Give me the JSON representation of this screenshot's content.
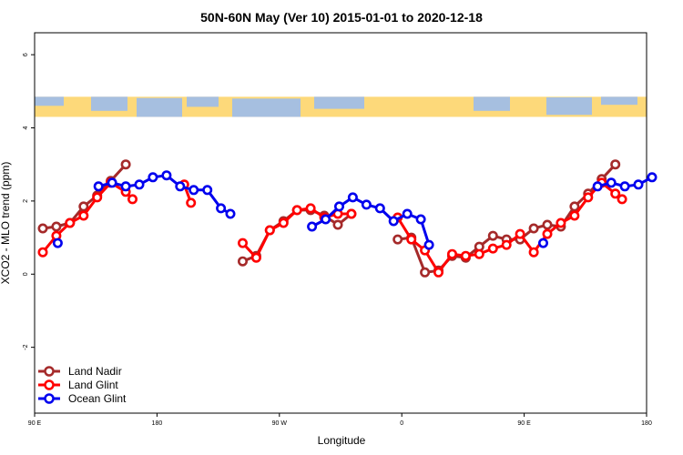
{
  "chart_data": {
    "type": "line",
    "title": "50N-60N May (Ver 10)   2015-01-01 to 2020-12-18",
    "xlabel": "Longitude",
    "ylabel": "XCO2 - MLO trend (ppm)",
    "x_ticks": [
      {
        "value": 90,
        "label": "90 E"
      },
      {
        "value": 180,
        "label": "180"
      },
      {
        "value": 270,
        "label": "90 W"
      },
      {
        "value": 360,
        "label": "0"
      },
      {
        "value": 450,
        "label": "90 E"
      },
      {
        "value": 540,
        "label": "180"
      }
    ],
    "y_ticks": [
      -2,
      0,
      2,
      4,
      6
    ],
    "xlim": [
      90,
      540
    ],
    "ylim": [
      -3.8,
      6.6
    ],
    "map_strip": {
      "ymin": 4.3,
      "ymax": 4.85,
      "ocean_color": "#a6bfe0",
      "land_color": "#fdd97a"
    },
    "legend_position": "bottom-left",
    "series": [
      {
        "name": "Land Nadir",
        "color": "#a52a2a",
        "x": [
          96,
          106,
          116,
          126,
          136,
          146,
          157,
          243,
          253,
          263,
          273,
          283,
          293,
          303,
          313,
          323,
          333,
          357,
          367,
          377,
          387,
          397,
          407,
          417,
          427,
          437,
          447,
          457,
          467,
          477,
          487,
          497,
          507,
          517,
          527
        ],
        "y": [
          1.25,
          1.3,
          1.4,
          1.85,
          2.15,
          2.55,
          3.0,
          0.35,
          0.5,
          1.2,
          1.45,
          1.75,
          1.75,
          1.6,
          1.35,
          1.65,
          null,
          0.95,
          1.0,
          0.05,
          0.1,
          0.5,
          0.45,
          0.75,
          1.05,
          0.95,
          0.95,
          1.25,
          1.35,
          1.3,
          1.85,
          2.2,
          2.6,
          3.0,
          null
        ]
      },
      {
        "name": "Land Glint",
        "color": "#ff0000",
        "x": [
          96,
          106,
          116,
          126,
          136,
          146,
          157,
          162,
          200,
          205,
          243,
          253,
          263,
          273,
          283,
          293,
          303,
          313,
          323,
          357,
          367,
          377,
          387,
          397,
          407,
          417,
          427,
          437,
          447,
          457,
          467,
          477,
          487,
          497,
          507,
          517,
          522
        ],
        "y": [
          0.6,
          1.05,
          1.4,
          1.6,
          2.1,
          2.5,
          2.25,
          2.05,
          2.45,
          1.95,
          0.85,
          0.45,
          1.2,
          1.4,
          1.75,
          1.8,
          1.55,
          1.65,
          1.65,
          1.55,
          0.95,
          0.65,
          0.05,
          0.55,
          0.5,
          0.55,
          0.7,
          0.8,
          1.1,
          0.6,
          1.1,
          1.4,
          1.6,
          2.1,
          2.5,
          2.2,
          2.05
        ]
      },
      {
        "name": "Ocean Glint",
        "color": "#0000ee",
        "x": [
          107,
          117,
          127,
          137,
          147,
          157,
          167,
          177,
          187,
          197,
          207,
          217,
          227,
          234,
          264,
          294,
          304,
          314,
          324,
          334,
          344,
          354,
          364,
          374,
          380,
          464,
          504,
          514,
          524,
          534,
          544
        ],
        "y": [
          0.85,
          null,
          null,
          2.4,
          2.5,
          2.4,
          2.45,
          2.65,
          2.7,
          2.4,
          2.3,
          2.3,
          1.8,
          1.65,
          null,
          1.3,
          1.5,
          1.85,
          2.1,
          1.9,
          1.8,
          1.45,
          1.65,
          1.5,
          0.8,
          0.85,
          2.4,
          2.5,
          2.4,
          2.45,
          2.65
        ]
      }
    ]
  }
}
